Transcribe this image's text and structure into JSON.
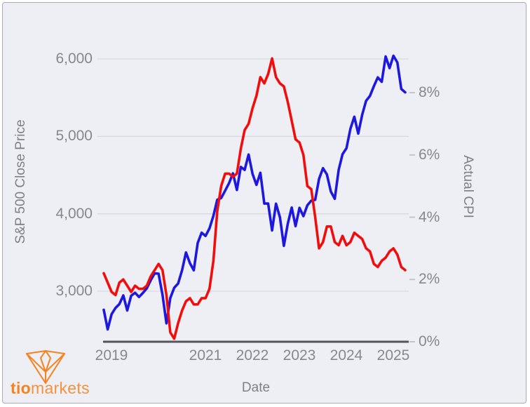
{
  "card": {
    "page_background": "#ffffff",
    "background": "#edeff4",
    "border_color": "#abacb1",
    "gridline_color": "#d7d9de",
    "axis_line_color": "#53555a",
    "tick_text_color": "#85888e"
  },
  "branding": {
    "logo_bold": "tio",
    "logo_light": "markets",
    "logo_color": "#f5821f"
  },
  "chart_data": {
    "type": "line",
    "title": "",
    "xlabel": "Date",
    "ylabel_left": "S&P 500 Close Price",
    "ylabel_right": "Actual CPI",
    "grid": "horizontal (left-axis values only)",
    "legend": "none",
    "x": [
      "2018-11",
      "2018-12",
      "2019-01",
      "2019-02",
      "2019-03",
      "2019-04",
      "2019-05",
      "2019-06",
      "2019-07",
      "2019-08",
      "2019-09",
      "2019-10",
      "2019-11",
      "2019-12",
      "2020-01",
      "2020-02",
      "2020-03",
      "2020-04",
      "2020-05",
      "2020-06",
      "2020-07",
      "2020-08",
      "2020-09",
      "2020-10",
      "2020-11",
      "2020-12",
      "2021-01",
      "2021-02",
      "2021-03",
      "2021-04",
      "2021-05",
      "2021-06",
      "2021-07",
      "2021-08",
      "2021-09",
      "2021-10",
      "2021-11",
      "2021-12",
      "2022-01",
      "2022-02",
      "2022-03",
      "2022-04",
      "2022-05",
      "2022-06",
      "2022-07",
      "2022-08",
      "2022-09",
      "2022-10",
      "2022-11",
      "2022-12",
      "2023-01",
      "2023-02",
      "2023-03",
      "2023-04",
      "2023-05",
      "2023-06",
      "2023-07",
      "2023-08",
      "2023-09",
      "2023-10",
      "2023-11",
      "2023-12",
      "2024-01",
      "2024-02",
      "2024-03",
      "2024-04",
      "2024-05",
      "2024-06",
      "2024-07",
      "2024-08",
      "2024-09",
      "2024-10",
      "2024-11",
      "2024-12",
      "2025-01",
      "2025-02",
      "2025-03",
      "2025-04"
    ],
    "x_tick_labels": [
      "2019",
      "2021",
      "2022",
      "2023",
      "2024",
      "2025"
    ],
    "x_tick_indices": [
      2,
      26,
      38,
      50,
      62,
      74
    ],
    "left_axis": {
      "ticks": [
        "3,000",
        "4,000",
        "5,000",
        "6,000"
      ],
      "values": [
        3000,
        4000,
        5000,
        6000
      ],
      "range_at_plot": [
        2350,
        6500
      ]
    },
    "right_axis": {
      "ticks": [
        "0%",
        "2%",
        "4%",
        "6%",
        "8%"
      ],
      "values": [
        0,
        2,
        4,
        6,
        8
      ],
      "range_at_plot": [
        0,
        10.3
      ]
    },
    "series": [
      {
        "name": "S&P 500 Close Price",
        "axis": "left",
        "color": "#1e17dd",
        "values": [
          2760,
          2507,
          2704,
          2784,
          2834,
          2946,
          2752,
          2942,
          2980,
          2926,
          2977,
          3038,
          3141,
          3231,
          3226,
          2954,
          2585,
          2912,
          3044,
          3100,
          3271,
          3500,
          3363,
          3270,
          3622,
          3756,
          3714,
          3811,
          3973,
          4181,
          4204,
          4298,
          4395,
          4523,
          4308,
          4605,
          4567,
          4766,
          4516,
          4374,
          4530,
          4132,
          4132,
          3785,
          4130,
          3955,
          3586,
          3872,
          4080,
          3840,
          4077,
          3970,
          4109,
          4169,
          4180,
          4450,
          4589,
          4508,
          4288,
          4194,
          4568,
          4770,
          4846,
          5096,
          5254,
          5036,
          5278,
          5460,
          5522,
          5648,
          5762,
          5705,
          6032,
          5882,
          6041,
          5955,
          5612,
          5569
        ]
      },
      {
        "name": "Actual CPI",
        "axis": "right",
        "color": "#f20d0d",
        "values": [
          2.2,
          1.9,
          1.6,
          1.5,
          1.9,
          2.0,
          1.8,
          1.6,
          1.8,
          1.7,
          1.7,
          1.8,
          2.1,
          2.3,
          2.5,
          2.3,
          1.5,
          0.3,
          0.1,
          0.6,
          1.0,
          1.3,
          1.4,
          1.2,
          1.2,
          1.4,
          1.4,
          1.7,
          2.6,
          4.2,
          5.0,
          5.4,
          5.4,
          5.3,
          5.4,
          6.2,
          6.8,
          7.0,
          7.5,
          7.9,
          8.5,
          8.3,
          8.6,
          9.1,
          8.5,
          8.3,
          8.2,
          7.7,
          7.1,
          6.5,
          6.4,
          6.0,
          5.0,
          4.9,
          4.0,
          3.0,
          3.2,
          3.7,
          3.7,
          3.2,
          3.1,
          3.4,
          3.1,
          3.2,
          3.5,
          3.4,
          3.3,
          3.0,
          2.9,
          2.5,
          2.4,
          2.6,
          2.7,
          2.9,
          3.0,
          2.8,
          2.4,
          2.3
        ]
      }
    ]
  }
}
